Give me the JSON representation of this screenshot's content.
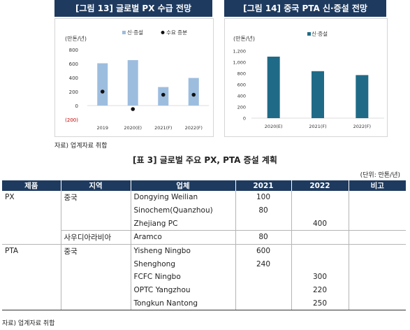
{
  "figure13": {
    "title": "[그림 13] 글로벌 PX 수급 전망",
    "unit_label": "(만톤/년)",
    "legend": [
      "신·증설",
      "수요 증분"
    ],
    "colors": {
      "bar": "#9dbddf",
      "dot": "#111111",
      "neg_tick": "#c00000"
    },
    "chart_data": {
      "type": "bar",
      "categories": [
        "2019",
        "2020(E)",
        "2021(F)",
        "2022(F)"
      ],
      "series": [
        {
          "name": "신·증설",
          "type": "bar",
          "values": [
            605,
            650,
            265,
            395
          ]
        },
        {
          "name": "수요 증분",
          "type": "scatter",
          "values": [
            200,
            -50,
            155,
            155
          ]
        }
      ],
      "yticks": [
        "800",
        "600",
        "400",
        "200",
        "0",
        "(200)"
      ],
      "ylim": [
        -200,
        800
      ]
    }
  },
  "figure14": {
    "title": "[그림 14] 중국 PTA 신·증설 전망",
    "unit_label": "(만톤/년)",
    "legend": [
      "신·증설"
    ],
    "colors": {
      "bar": "#1f6b87"
    },
    "chart_data": {
      "type": "bar",
      "categories": [
        "2020(E)",
        "2021(F)",
        "2022(F)"
      ],
      "series": [
        {
          "name": "신·증설",
          "values": [
            1100,
            840,
            770
          ]
        }
      ],
      "yticks": [
        "1,200",
        "1,000",
        "800",
        "600",
        "400",
        "200",
        "0"
      ],
      "ylim": [
        0,
        1200
      ]
    }
  },
  "source_top": "자료) 업계자료 취합",
  "table": {
    "title": "[표 3] 글로벌 주요 PX, PTA 증설 계획",
    "unit": "(단위: 만톤/년)",
    "headers": [
      "제품",
      "지역",
      "업체",
      "2021",
      "2022",
      "비고"
    ],
    "rows": [
      [
        "PX",
        "중국",
        "Dongying Weilian",
        "100",
        "",
        ""
      ],
      [
        "",
        "",
        "Sinochem(Quanzhou)",
        "80",
        "",
        ""
      ],
      [
        "",
        "",
        "Zhejiang PC",
        "",
        "400",
        ""
      ],
      [
        "",
        "사우디아라비아",
        "Aramco",
        "80",
        "",
        ""
      ],
      [
        "PTA",
        "중국",
        "Yisheng Ningbo",
        "600",
        "",
        ""
      ],
      [
        "",
        "",
        "Shenghong",
        "240",
        "",
        ""
      ],
      [
        "",
        "",
        "FCFC Ningbo",
        "",
        "300",
        ""
      ],
      [
        "",
        "",
        "OPTC Yangzhou",
        "",
        "220",
        ""
      ],
      [
        "",
        "",
        "Tongkun Nantong",
        "",
        "250",
        ""
      ]
    ]
  },
  "source_bottom": "자료) 업계자료 취합"
}
